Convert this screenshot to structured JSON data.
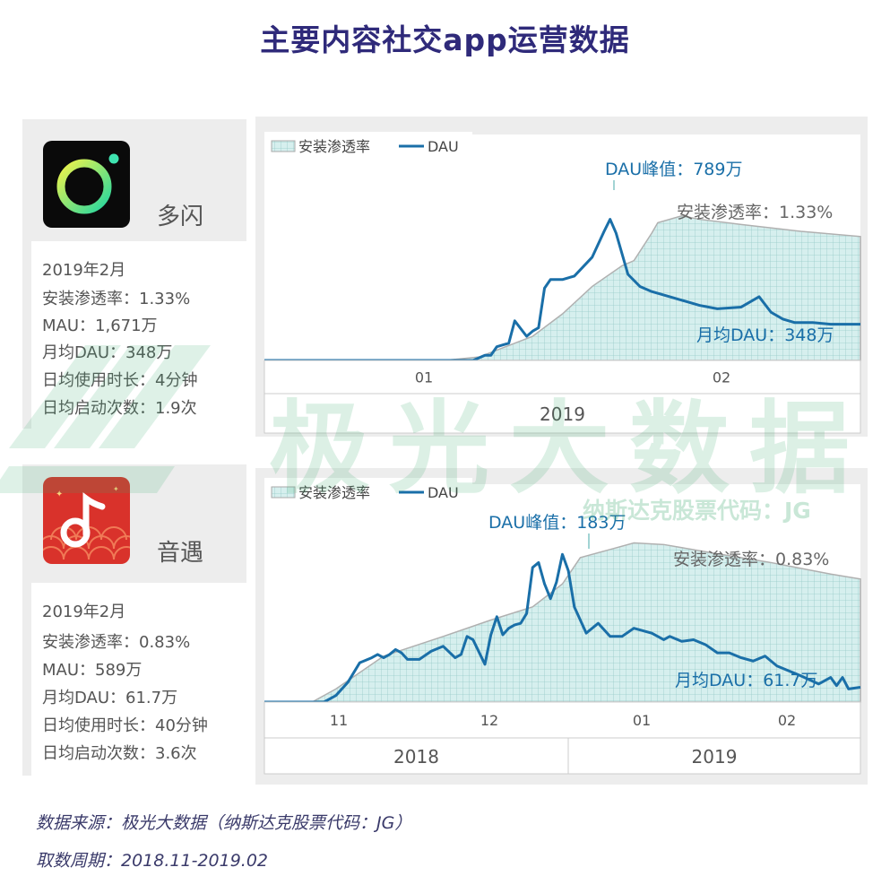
{
  "title": "主要内容社交app运营数据",
  "apps": [
    {
      "name": "多闪",
      "icon": "duoshan-app-icon",
      "info": [
        "2019年2月",
        "安装渗透率：1.33%",
        "MAU：1,671万",
        "月均DAU：348万",
        "日均使用时长：4分钟",
        "日均启动次数：1.9次"
      ]
    },
    {
      "name": "音遇",
      "icon": "yinyu-app-icon",
      "info": [
        "2019年2月",
        "安装渗透率：0.83%",
        "MAU：589万",
        "月均DAU：61.7万",
        "日均使用时长：40分钟",
        "日均启动次数：3.6次"
      ]
    }
  ],
  "chart_data": [
    {
      "type": "area",
      "legend": [
        "安装渗透率",
        "DAU"
      ],
      "legend_position": "top-left",
      "annotations": {
        "peak": "DAU峰值：789万",
        "penetration": "安装渗透率：1.33%",
        "avg": "月均DAU：348万"
      },
      "x_ticks": [
        "01",
        "02"
      ],
      "year_labels": [
        "2019"
      ],
      "x_range": [
        0,
        100
      ],
      "y_range": [
        0,
        100
      ],
      "series": [
        {
          "name": "安装渗透率",
          "style": "filled-area-grid",
          "x": [
            0,
            30,
            36,
            45,
            50,
            55,
            60,
            62,
            65,
            66,
            70,
            73,
            80,
            90,
            100
          ],
          "y": [
            0,
            0,
            2,
            14,
            27,
            43,
            55,
            58,
            74,
            80,
            84,
            82,
            79,
            75,
            72
          ]
        },
        {
          "name": "DAU",
          "style": "line",
          "x": [
            0,
            35,
            37,
            38,
            39,
            40,
            41,
            42,
            44,
            45,
            46,
            47,
            48,
            50,
            52,
            55,
            57,
            58,
            59,
            61,
            63,
            65,
            68,
            70,
            73,
            76,
            80,
            83,
            85,
            87,
            89,
            92,
            95,
            100
          ],
          "y": [
            0,
            0,
            3,
            3,
            8,
            9,
            10,
            23,
            14,
            17,
            19,
            42,
            47,
            47,
            49,
            60,
            75,
            82,
            74,
            50,
            43,
            40,
            37,
            35,
            32,
            30,
            31,
            37,
            28,
            24,
            22,
            22,
            21,
            21
          ]
        }
      ]
    },
    {
      "type": "area",
      "legend": [
        "安装渗透率",
        "DAU"
      ],
      "legend_position": "top-left",
      "annotations": {
        "peak": "DAU峰值：183万",
        "penetration": "安装渗透率：0.83%",
        "avg": "月均DAU：61.7万"
      },
      "x_ticks": [
        "11",
        "12",
        "01",
        "02"
      ],
      "year_labels": [
        "2018",
        "2019"
      ],
      "x_range": [
        0,
        100
      ],
      "y_range": [
        0,
        100
      ],
      "series": [
        {
          "name": "安装渗透率",
          "style": "filled-area-grid",
          "x": [
            0,
            8,
            12,
            20,
            30,
            38,
            45,
            50,
            53,
            58,
            62,
            67,
            75,
            85,
            95,
            100
          ],
          "y": [
            0,
            0,
            8,
            28,
            40,
            50,
            58,
            72,
            88,
            93,
            97,
            96,
            91,
            85,
            78,
            75
          ]
        },
        {
          "name": "DAU",
          "style": "line",
          "x": [
            0,
            10,
            12,
            14,
            16,
            18,
            19,
            20,
            21,
            22,
            23,
            24,
            25,
            26,
            28,
            30,
            32,
            33,
            34,
            35,
            37,
            38,
            39,
            40,
            41,
            42,
            43,
            44,
            45,
            46,
            47,
            48,
            49,
            50,
            51,
            52,
            54,
            56,
            58,
            60,
            62,
            65,
            67,
            68,
            70,
            72,
            74,
            76,
            78,
            80,
            82,
            84,
            86,
            88,
            90,
            93,
            95,
            96,
            97,
            98,
            100
          ],
          "y": [
            0,
            0,
            4,
            12,
            24,
            27,
            29,
            27,
            29,
            32,
            30,
            26,
            26,
            26,
            31,
            34,
            27,
            29,
            40,
            38,
            23,
            41,
            52,
            41,
            45,
            47,
            48,
            54,
            82,
            85,
            72,
            63,
            73,
            90,
            80,
            58,
            42,
            48,
            40,
            40,
            45,
            42,
            38,
            40,
            37,
            38,
            35,
            30,
            30,
            27,
            25,
            28,
            22,
            19,
            16,
            11,
            15,
            10,
            15,
            8,
            9
          ]
        }
      ]
    }
  ],
  "watermark": {
    "brand": "极光大数据",
    "stock": "纳斯达克股票代码：JG"
  },
  "footer": {
    "source": "数据来源：极光大数据（纳斯达克股票代码：JG）",
    "period": "取数周期：2018.11-2019.02"
  },
  "colors": {
    "title": "#2f2a7a",
    "dau_line": "#1a6fa8",
    "area_fill": "#d6efee",
    "grid": "#98cbc9",
    "panel": "#ededed",
    "watermark": "#3caa6e"
  }
}
